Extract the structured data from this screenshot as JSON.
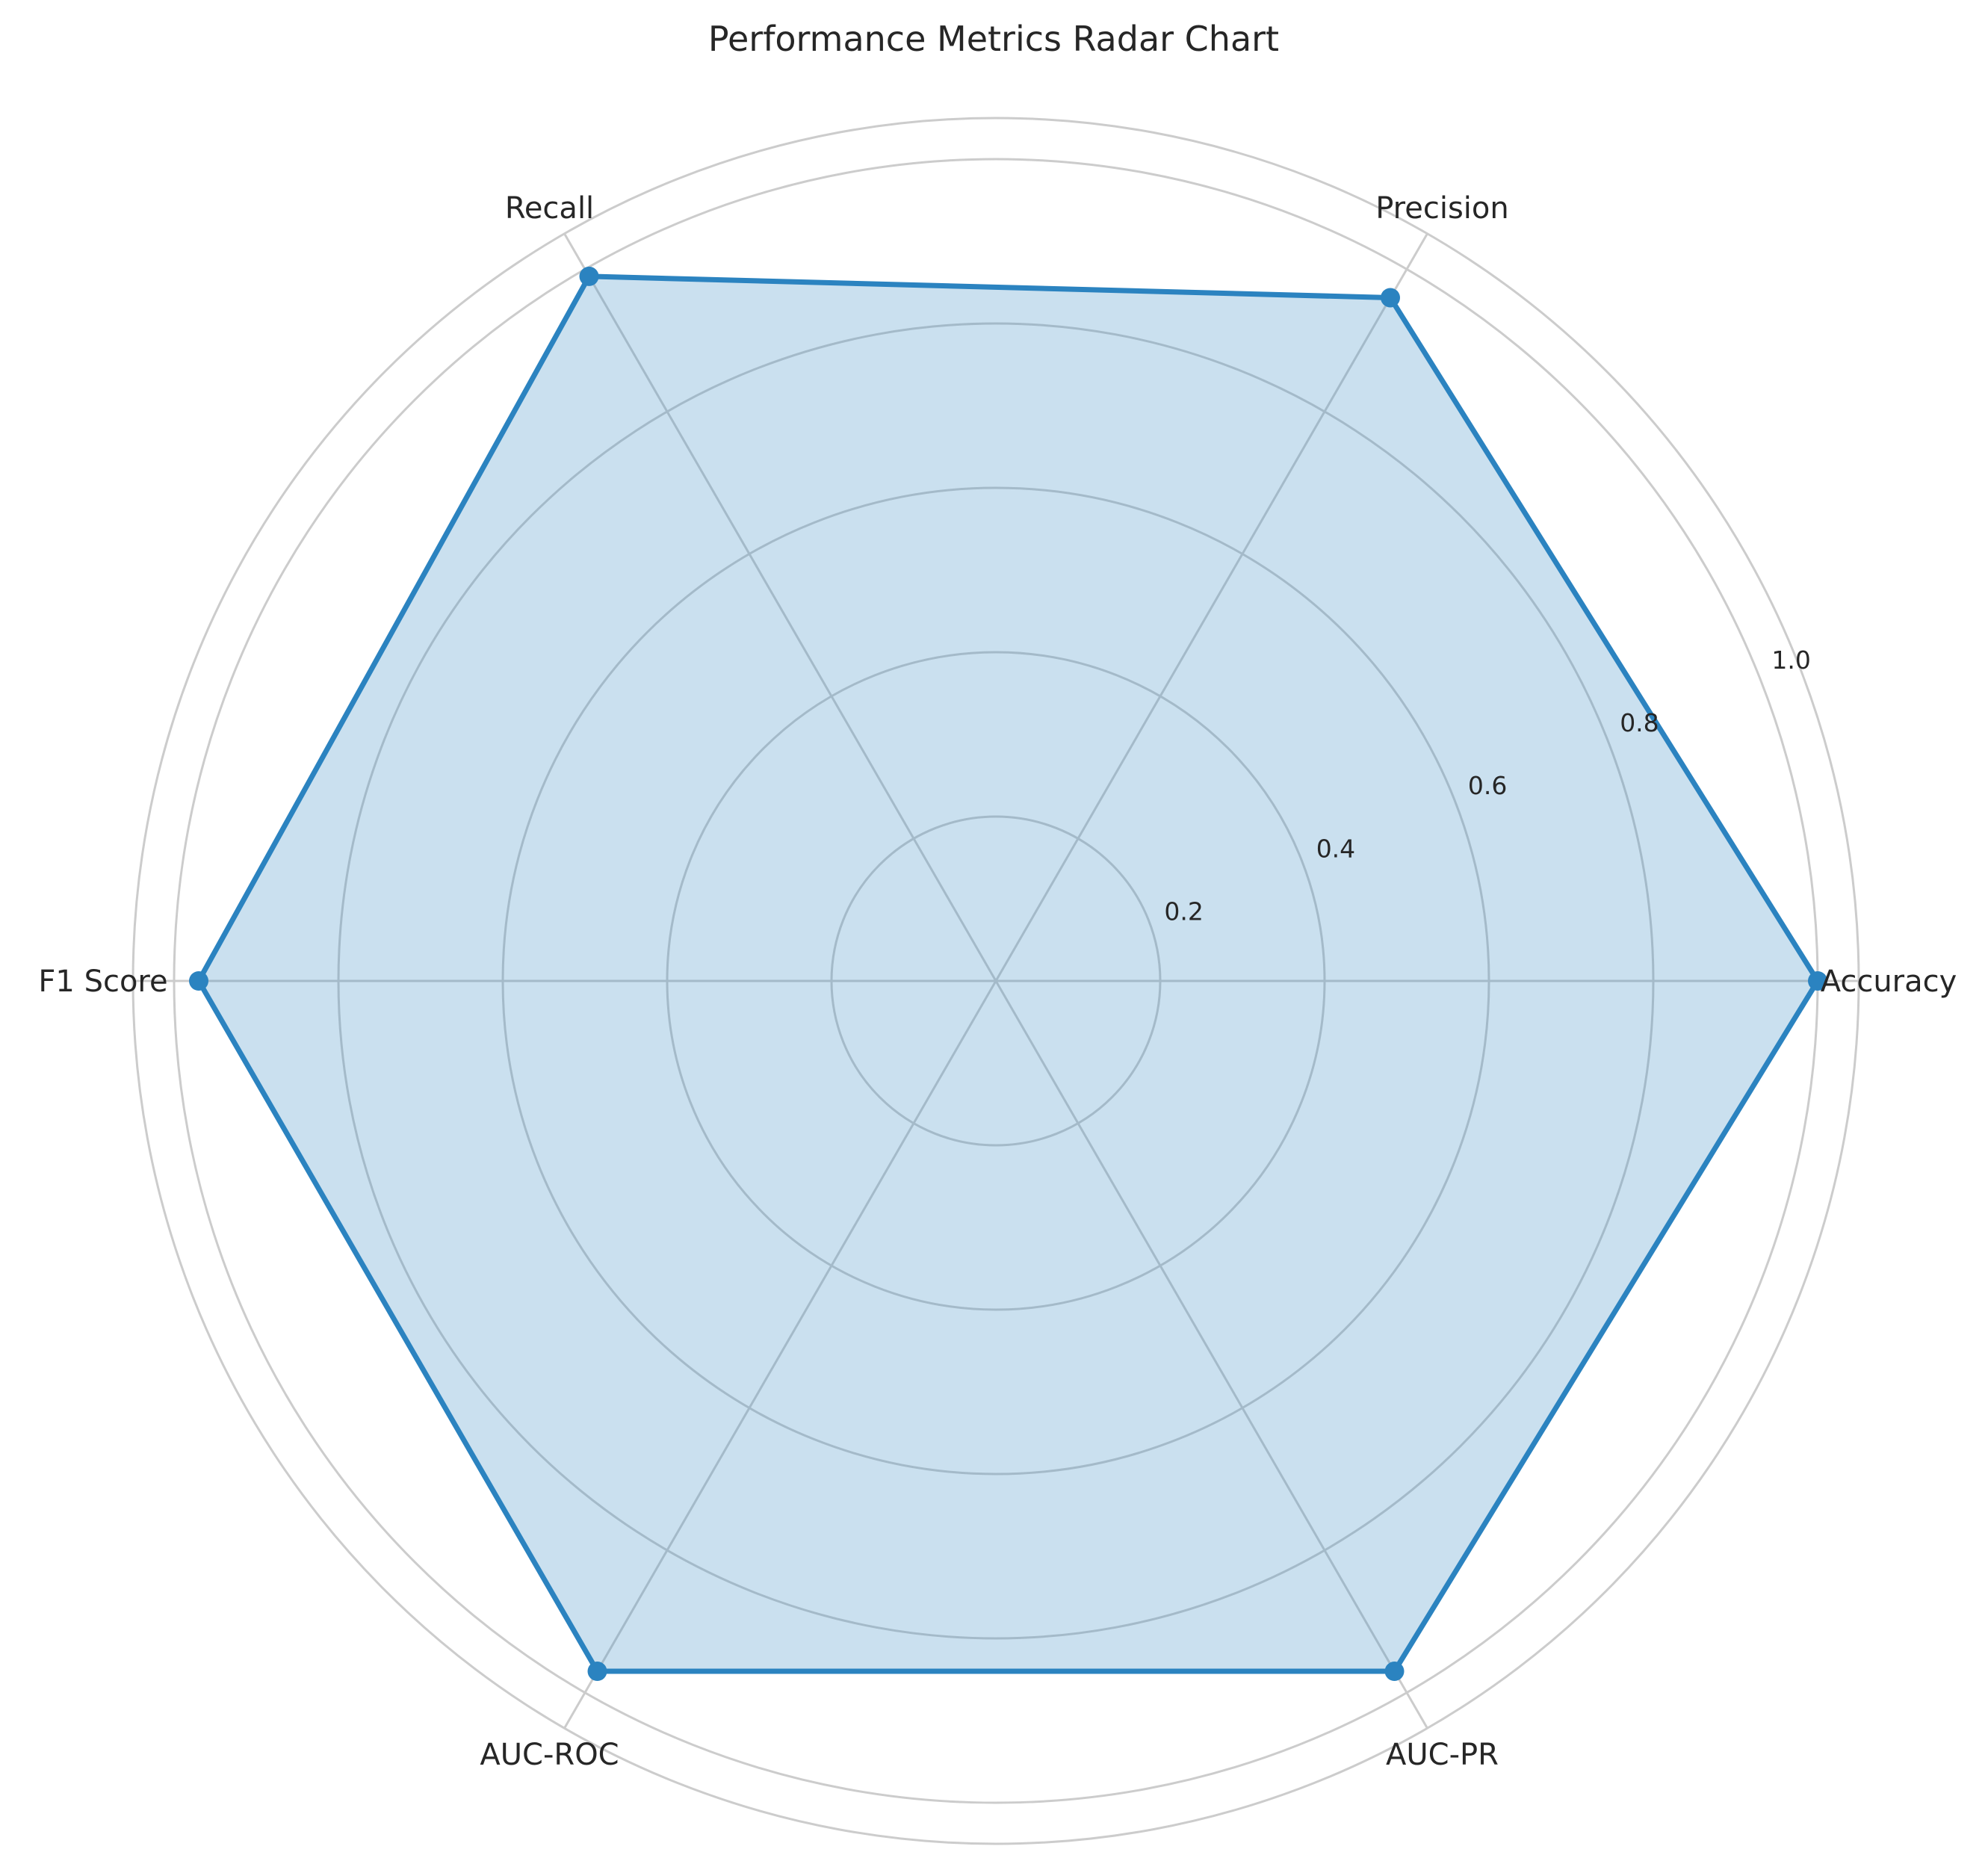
{
  "chart_data": {
    "type": "radar",
    "title": "Performance Metrics Radar Chart",
    "categories": [
      "Accuracy",
      "Precision",
      "Recall",
      "F1 Score",
      "AUC-ROC",
      "AUC-PR"
    ],
    "series": [
      {
        "values": [
          1.0,
          0.96,
          0.99,
          0.97,
          0.97,
          0.97
        ]
      }
    ],
    "rlim": [
      0,
      1.05
    ],
    "rticks": [
      0.2,
      0.4,
      0.6,
      0.8,
      1.0
    ],
    "rtick_labels": [
      "0.2",
      "0.4",
      "0.6",
      "0.8",
      "1.0"
    ],
    "grid": true,
    "colors": {
      "line": "#2b83c0",
      "fill": "#2b83c0",
      "grid": "#cccccc",
      "text": "#262626"
    }
  }
}
